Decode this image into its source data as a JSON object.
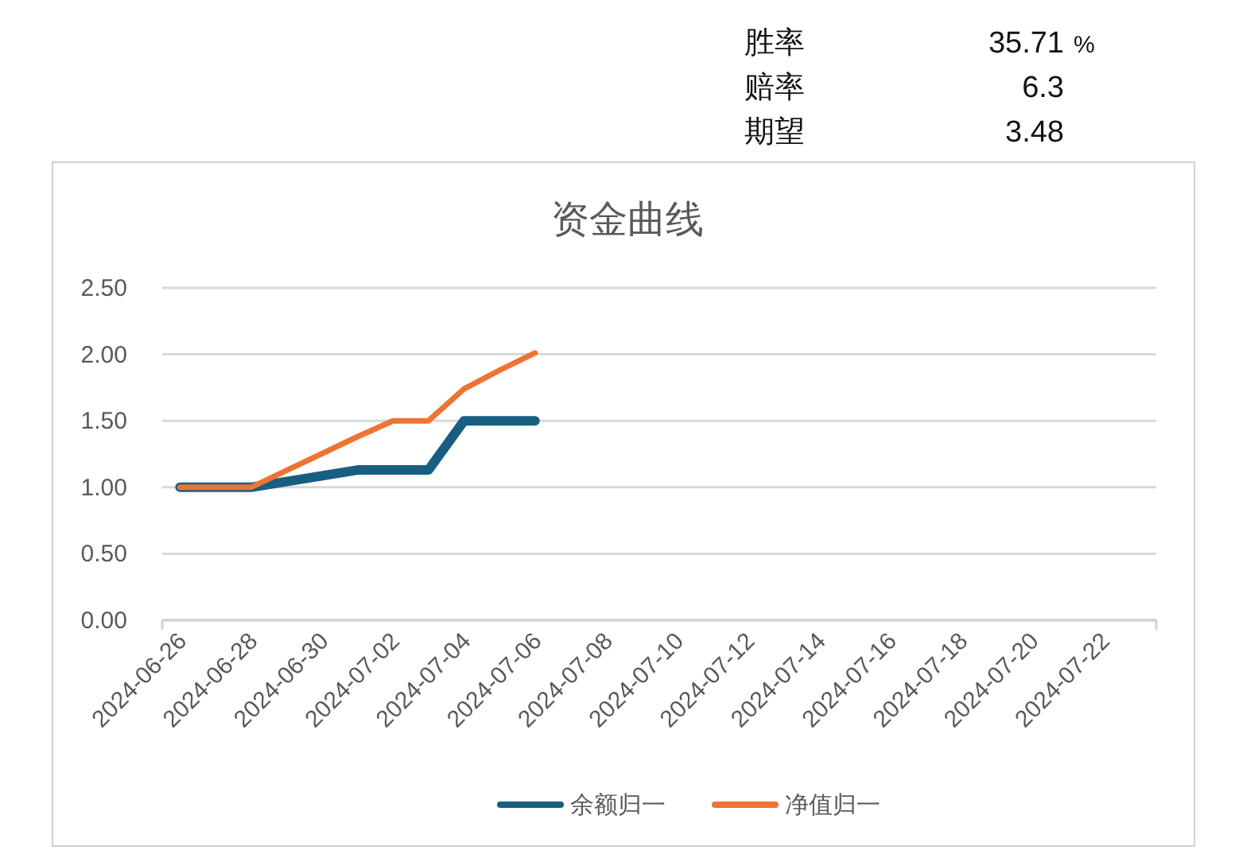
{
  "chart_data": {
    "type": "line",
    "title": "资金曲线",
    "annotations": [
      "胜率 35.71 %",
      "赔率 6.3",
      "期望 3.48"
    ],
    "x": [
      "2024-06-26",
      "2024-06-27",
      "2024-06-28",
      "2024-07-01",
      "2024-07-02",
      "2024-07-03",
      "2024-07-04",
      "2024-07-05",
      "2024-07-06"
    ],
    "series": [
      {
        "name": "余额归一",
        "color": "#175e82",
        "values": [
          1.0,
          1.0,
          1.0,
          1.13,
          1.13,
          1.13,
          1.5,
          1.5,
          1.5
        ]
      },
      {
        "name": "净值归一",
        "color": "#ed7433",
        "values": [
          1.0,
          1.0,
          1.0,
          1.38,
          1.5,
          1.5,
          1.74,
          1.88,
          2.01
        ]
      }
    ],
    "xlim": [
      "2024-06-25T12:00",
      "2024-07-23T12:00"
    ],
    "xticks": [
      "2024-06-26",
      "2024-06-28",
      "2024-06-30",
      "2024-07-02",
      "2024-07-04",
      "2024-07-06",
      "2024-07-08",
      "2024-07-10",
      "2024-07-12",
      "2024-07-14",
      "2024-07-16",
      "2024-07-18",
      "2024-07-20",
      "2024-07-22"
    ],
    "ylim": [
      0,
      2.5
    ],
    "yticks": [
      {
        "value": 0,
        "label": "0.00"
      },
      {
        "value": 0.5,
        "label": "0.50"
      },
      {
        "value": 1,
        "label": "1.00"
      },
      {
        "value": 1.5,
        "label": "1.50"
      },
      {
        "value": 2,
        "label": "2.00"
      },
      {
        "value": 2.5,
        "label": "2.50"
      }
    ],
    "grid": "y",
    "legend": "bottom",
    "marker": "none",
    "line_style": "solid"
  }
}
